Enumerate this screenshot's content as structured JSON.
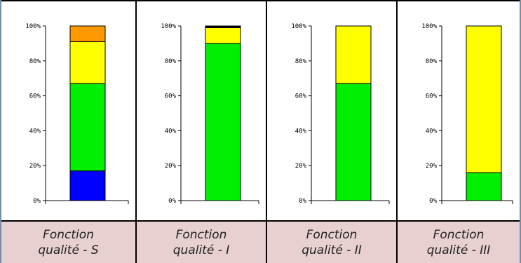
{
  "chart_data": [
    {
      "type": "bar",
      "stacked": true,
      "label_lines": [
        "Fonction",
        "qualité - S"
      ],
      "ylim": [
        0,
        100
      ],
      "yticks": [
        "0%",
        "20%",
        "40%",
        "60%",
        "80%",
        "100%"
      ],
      "series": [
        {
          "color": "#0000ff",
          "values": [
            17
          ]
        },
        {
          "color": "#00ee00",
          "values": [
            50
          ]
        },
        {
          "color": "#ffff00",
          "values": [
            24
          ]
        },
        {
          "color": "#ff9900",
          "values": [
            9
          ]
        }
      ]
    },
    {
      "type": "bar",
      "stacked": true,
      "label_lines": [
        "Fonction",
        "qualité - I"
      ],
      "ylim": [
        0,
        100
      ],
      "yticks": [
        "0%",
        "20%",
        "40%",
        "60%",
        "80%",
        "100%"
      ],
      "series": [
        {
          "color": "#00ee00",
          "values": [
            90
          ]
        },
        {
          "color": "#ffff00",
          "values": [
            9
          ]
        },
        {
          "color": "#000000",
          "values": [
            1
          ]
        }
      ]
    },
    {
      "type": "bar",
      "stacked": true,
      "label_lines": [
        "Fonction",
        "qualité - II"
      ],
      "ylim": [
        0,
        100
      ],
      "yticks": [
        "0%",
        "20%",
        "40%",
        "60%",
        "80%",
        "100%"
      ],
      "series": [
        {
          "color": "#00ee00",
          "values": [
            67
          ]
        },
        {
          "color": "#ffff00",
          "values": [
            33
          ]
        }
      ]
    },
    {
      "type": "bar",
      "stacked": true,
      "label_lines": [
        "Fonction",
        "qualité - III"
      ],
      "ylim": [
        0,
        100
      ],
      "yticks": [
        "0%",
        "20%",
        "40%",
        "60%",
        "80%",
        "100%"
      ],
      "series": [
        {
          "color": "#00ee00",
          "values": [
            16
          ]
        },
        {
          "color": "#ffff00",
          "values": [
            84
          ]
        }
      ]
    }
  ]
}
